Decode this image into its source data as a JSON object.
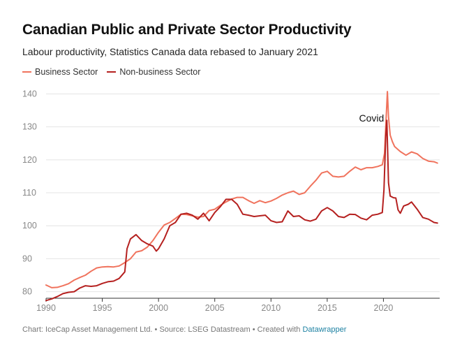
{
  "header": {
    "title": "Canadian Public and Private Sector Productivity",
    "subtitle": "Labour productivity, Statistics Canada data rebased to January 2021"
  },
  "colors": {
    "business": "#f0735d",
    "non_business": "#b5201f",
    "grid": "#e4e4e4",
    "axis": "#333333"
  },
  "footer": {
    "credit_text": "Chart: IceCap Asset Management Ltd. • Source: LSEG Datastream • Created with ",
    "credit_link": "Datawrapper"
  },
  "chart_data": {
    "type": "line",
    "title": "Canadian Public and Private Sector Productivity",
    "subtitle": "Labour productivity, Statistics Canada data rebased to January 2021",
    "xlim": [
      1990,
      2025
    ],
    "ylim": [
      78,
      142
    ],
    "x_ticks": [
      1990,
      1995,
      2000,
      2005,
      2010,
      2015,
      2020
    ],
    "y_ticks": [
      80,
      90,
      100,
      110,
      120,
      130,
      140
    ],
    "grid": true,
    "legend_position": "top-left",
    "annotations": [
      {
        "text": "Covid",
        "x": 2020.3,
        "y": 132.5
      }
    ],
    "series": [
      {
        "name": "Business Sector",
        "color": "#f0735d",
        "points": [
          [
            1990.0,
            82.0
          ],
          [
            1990.5,
            81.2
          ],
          [
            1991.0,
            81.3
          ],
          [
            1991.5,
            81.8
          ],
          [
            1992.0,
            82.4
          ],
          [
            1992.5,
            83.5
          ],
          [
            1993.0,
            84.3
          ],
          [
            1993.5,
            85.0
          ],
          [
            1994.0,
            86.2
          ],
          [
            1994.5,
            87.2
          ],
          [
            1995.0,
            87.5
          ],
          [
            1995.5,
            87.6
          ],
          [
            1996.0,
            87.5
          ],
          [
            1996.5,
            87.8
          ],
          [
            1997.0,
            88.8
          ],
          [
            1997.5,
            90.0
          ],
          [
            1998.0,
            92.0
          ],
          [
            1998.5,
            92.4
          ],
          [
            1999.0,
            93.5
          ],
          [
            1999.5,
            95.5
          ],
          [
            2000.0,
            98.0
          ],
          [
            2000.5,
            100.2
          ],
          [
            2001.0,
            101.0
          ],
          [
            2001.5,
            102.2
          ],
          [
            2002.0,
            103.5
          ],
          [
            2002.5,
            103.4
          ],
          [
            2003.0,
            103.0
          ],
          [
            2003.5,
            102.6
          ],
          [
            2004.0,
            102.8
          ],
          [
            2004.5,
            104.6
          ],
          [
            2005.0,
            105.0
          ],
          [
            2005.5,
            106.2
          ],
          [
            2006.0,
            107.2
          ],
          [
            2006.5,
            108.1
          ],
          [
            2007.0,
            108.6
          ],
          [
            2007.5,
            108.6
          ],
          [
            2008.0,
            107.6
          ],
          [
            2008.5,
            106.8
          ],
          [
            2009.0,
            107.6
          ],
          [
            2009.5,
            107.0
          ],
          [
            2010.0,
            107.5
          ],
          [
            2010.5,
            108.3
          ],
          [
            2011.0,
            109.3
          ],
          [
            2011.5,
            110.0
          ],
          [
            2012.0,
            110.5
          ],
          [
            2012.5,
            109.5
          ],
          [
            2013.0,
            110.0
          ],
          [
            2013.5,
            112.0
          ],
          [
            2014.0,
            113.8
          ],
          [
            2014.5,
            116.0
          ],
          [
            2015.0,
            116.5
          ],
          [
            2015.5,
            115.0
          ],
          [
            2016.0,
            114.8
          ],
          [
            2016.5,
            115.0
          ],
          [
            2017.0,
            116.5
          ],
          [
            2017.5,
            117.8
          ],
          [
            2018.0,
            117.0
          ],
          [
            2018.5,
            117.6
          ],
          [
            2019.0,
            117.6
          ],
          [
            2019.5,
            118.0
          ],
          [
            2019.9,
            118.5
          ],
          [
            2020.1,
            122.0
          ],
          [
            2020.25,
            133.5
          ],
          [
            2020.35,
            140.7
          ],
          [
            2020.45,
            133.0
          ],
          [
            2020.6,
            127.5
          ],
          [
            2020.8,
            125.5
          ],
          [
            2021.0,
            124.0
          ],
          [
            2021.5,
            122.5
          ],
          [
            2022.0,
            121.4
          ],
          [
            2022.5,
            122.4
          ],
          [
            2023.0,
            121.8
          ],
          [
            2023.5,
            120.4
          ],
          [
            2024.0,
            119.6
          ],
          [
            2024.5,
            119.4
          ],
          [
            2024.8,
            119.0
          ]
        ]
      },
      {
        "name": "Non-business Sector",
        "color": "#b5201f",
        "points": [
          [
            1990.0,
            77.3
          ],
          [
            1990.5,
            77.8
          ],
          [
            1991.0,
            78.5
          ],
          [
            1991.5,
            79.4
          ],
          [
            1992.0,
            79.8
          ],
          [
            1992.5,
            80.0
          ],
          [
            1993.0,
            81.1
          ],
          [
            1993.5,
            81.8
          ],
          [
            1994.0,
            81.6
          ],
          [
            1994.5,
            81.8
          ],
          [
            1995.0,
            82.5
          ],
          [
            1995.5,
            83.0
          ],
          [
            1996.0,
            83.2
          ],
          [
            1996.5,
            84.0
          ],
          [
            1997.0,
            86.0
          ],
          [
            1997.2,
            93.0
          ],
          [
            1997.5,
            96.0
          ],
          [
            1998.0,
            97.3
          ],
          [
            1998.5,
            95.5
          ],
          [
            1999.0,
            94.5
          ],
          [
            1999.5,
            93.8
          ],
          [
            1999.8,
            92.3
          ],
          [
            2000.0,
            93.0
          ],
          [
            2000.5,
            96.0
          ],
          [
            2001.0,
            100.0
          ],
          [
            2001.5,
            101.0
          ],
          [
            2002.0,
            103.5
          ],
          [
            2002.5,
            103.8
          ],
          [
            2003.0,
            103.2
          ],
          [
            2003.5,
            102.0
          ],
          [
            2004.0,
            103.8
          ],
          [
            2004.5,
            101.5
          ],
          [
            2005.0,
            104.0
          ],
          [
            2005.5,
            105.8
          ],
          [
            2006.0,
            108.0
          ],
          [
            2006.5,
            108.0
          ],
          [
            2007.0,
            106.5
          ],
          [
            2007.5,
            103.5
          ],
          [
            2008.0,
            103.2
          ],
          [
            2008.5,
            102.8
          ],
          [
            2009.0,
            103.0
          ],
          [
            2009.5,
            103.2
          ],
          [
            2010.0,
            101.5
          ],
          [
            2010.5,
            101.0
          ],
          [
            2011.0,
            101.2
          ],
          [
            2011.5,
            104.5
          ],
          [
            2012.0,
            102.8
          ],
          [
            2012.5,
            103.0
          ],
          [
            2013.0,
            101.8
          ],
          [
            2013.5,
            101.4
          ],
          [
            2014.0,
            102.0
          ],
          [
            2014.5,
            104.5
          ],
          [
            2015.0,
            105.5
          ],
          [
            2015.5,
            104.5
          ],
          [
            2016.0,
            102.8
          ],
          [
            2016.5,
            102.5
          ],
          [
            2017.0,
            103.5
          ],
          [
            2017.5,
            103.4
          ],
          [
            2018.0,
            102.3
          ],
          [
            2018.5,
            101.8
          ],
          [
            2019.0,
            103.2
          ],
          [
            2019.5,
            103.5
          ],
          [
            2019.9,
            104.0
          ],
          [
            2020.05,
            111.0
          ],
          [
            2020.2,
            127.0
          ],
          [
            2020.3,
            132.0
          ],
          [
            2020.45,
            113.0
          ],
          [
            2020.6,
            109.0
          ],
          [
            2020.9,
            108.5
          ],
          [
            2021.1,
            108.4
          ],
          [
            2021.3,
            104.8
          ],
          [
            2021.5,
            103.8
          ],
          [
            2021.8,
            106.0
          ],
          [
            2022.2,
            106.5
          ],
          [
            2022.5,
            107.2
          ],
          [
            2023.0,
            105.0
          ],
          [
            2023.5,
            102.5
          ],
          [
            2024.0,
            102.0
          ],
          [
            2024.5,
            101.0
          ],
          [
            2024.8,
            100.8
          ]
        ]
      }
    ]
  }
}
